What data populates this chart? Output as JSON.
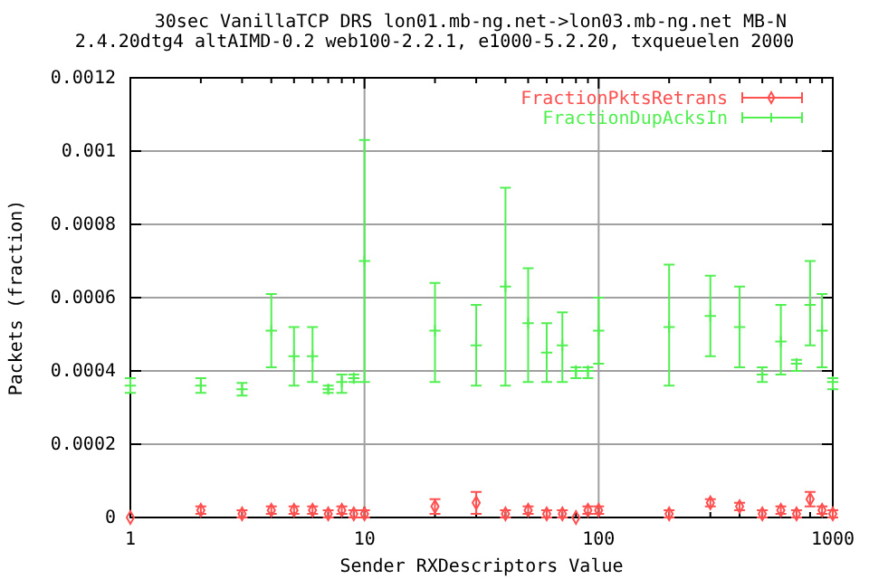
{
  "chart_data": {
    "type": "scatter",
    "title": "30sec VanillaTCP DRS lon01.mb-ng.net->lon03.mb-ng.net MB-N",
    "subtitle": "2.4.20dtg4 altAIMD-0.2 web100-2.2.1, e1000-5.2.20, txqueuelen 2000",
    "xlabel": "Sender RXDescriptors Value",
    "ylabel": "Packets (fraction)",
    "x": [
      1,
      2,
      3,
      4,
      5,
      6,
      7,
      8,
      9,
      10,
      20,
      30,
      40,
      50,
      60,
      70,
      80,
      90,
      100,
      200,
      300,
      400,
      500,
      600,
      700,
      800,
      900,
      1000
    ],
    "series": [
      {
        "name": "FractionPktsRetrans",
        "color": "#ff5050",
        "marker": "diamond",
        "values": [
          0,
          2e-05,
          1e-05,
          2e-05,
          2e-05,
          2e-05,
          1e-05,
          2e-05,
          1e-05,
          1e-05,
          3e-05,
          4e-05,
          1e-05,
          2e-05,
          1e-05,
          1e-05,
          0,
          2e-05,
          2e-05,
          1e-05,
          4e-05,
          3e-05,
          1e-05,
          2e-05,
          1e-05,
          5e-05,
          2e-05,
          1e-05
        ],
        "errors": [
          null,
          1e-05,
          1e-05,
          1e-05,
          1e-05,
          1e-05,
          1e-05,
          1e-05,
          1e-05,
          1e-05,
          2e-05,
          3e-05,
          1e-05,
          1e-05,
          1e-05,
          1e-05,
          null,
          1e-05,
          1e-05,
          1e-05,
          1e-05,
          1e-05,
          1e-05,
          1e-05,
          1e-05,
          2e-05,
          1e-05,
          1e-05
        ]
      },
      {
        "name": "FractionDupAcksIn",
        "color": "#50f050",
        "marker": "cross",
        "values": [
          0.00036,
          0.00036,
          0.00035,
          0.00051,
          0.00044,
          0.00044,
          0.00035,
          0.00037,
          0.00038,
          0.0007,
          0.00051,
          0.00047,
          0.00063,
          0.00053,
          0.00045,
          0.00047,
          0.0004,
          0.0004,
          0.00051,
          0.00052,
          0.00055,
          0.00052,
          0.00039,
          0.00048,
          0.00042,
          0.00058,
          0.00051,
          0.00037
        ],
        "errors": [
          2e-05,
          2e-05,
          1.7e-05,
          [
            0.00041,
            0.00061
          ],
          [
            0.00036,
            0.00052
          ],
          [
            0.00037,
            0.00052
          ],
          1e-05,
          [
            0.00034,
            0.00039
          ],
          1e-05,
          [
            0.00037,
            0.00103
          ],
          [
            0.00037,
            0.00064
          ],
          [
            0.00036,
            0.00058
          ],
          [
            0.00036,
            0.0009
          ],
          [
            0.00037,
            0.00068
          ],
          [
            0.00037,
            0.00053
          ],
          [
            0.00037,
            0.00056
          ],
          [
            0.00038,
            0.00041
          ],
          [
            0.00038,
            0.00041
          ],
          [
            0.00042,
            0.0006
          ],
          [
            0.00036,
            0.00069
          ],
          [
            0.00044,
            0.00066
          ],
          [
            0.00041,
            0.00063
          ],
          [
            0.00037,
            0.00041
          ],
          [
            0.00039,
            0.00058
          ],
          [
            0.0004,
            0.00043
          ],
          [
            0.00047,
            0.0007
          ],
          [
            0.00041,
            0.00061
          ],
          [
            0.00035,
            0.00038
          ]
        ]
      }
    ],
    "log": "x",
    "xlim": [
      1,
      1000
    ],
    "ylim": [
      0,
      0.0012
    ],
    "xticks": [
      1,
      {
        "value": 2,
        "label": null
      },
      {
        "value": 3,
        "label": null
      },
      {
        "value": 4,
        "label": null
      },
      {
        "value": 5,
        "label": null
      },
      {
        "value": 6,
        "label": null
      },
      {
        "value": 7,
        "label": null
      },
      {
        "value": 8,
        "label": null
      },
      {
        "value": 9,
        "label": null
      },
      10,
      {
        "value": 20,
        "label": null
      },
      {
        "value": 30,
        "label": null
      },
      {
        "value": 40,
        "label": null
      },
      {
        "value": 50,
        "label": null
      },
      {
        "value": 60,
        "label": null
      },
      {
        "value": 70,
        "label": null
      },
      {
        "value": 80,
        "label": null
      },
      {
        "value": 90,
        "label": null
      },
      100,
      {
        "value": 200,
        "label": null
      },
      {
        "value": 300,
        "label": null
      },
      {
        "value": 400,
        "label": null
      },
      {
        "value": 500,
        "label": null
      },
      {
        "value": 600,
        "label": null
      },
      {
        "value": 700,
        "label": null
      },
      {
        "value": 800,
        "label": null
      },
      {
        "value": 900,
        "label": null
      },
      1000
    ],
    "yticks": [
      0,
      0.0002,
      0.0004,
      0.0006,
      0.0008,
      0.001,
      0.0012
    ],
    "grid": true,
    "legend": "top right"
  }
}
